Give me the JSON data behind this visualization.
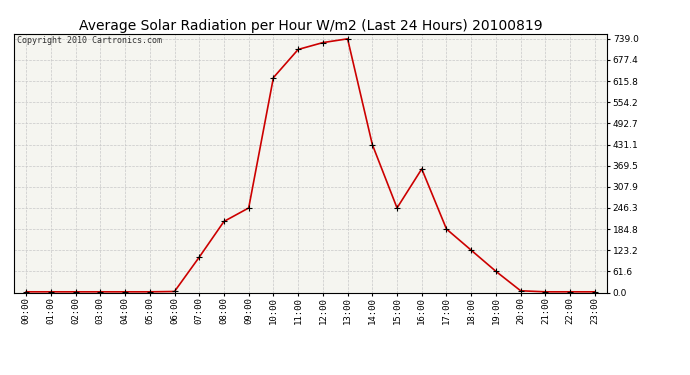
{
  "title": "Average Solar Radiation per Hour W/m2 (Last 24 Hours) 20100819",
  "copyright": "Copyright 2010 Cartronics.com",
  "hours": [
    "00:00",
    "01:00",
    "02:00",
    "03:00",
    "04:00",
    "05:00",
    "06:00",
    "07:00",
    "08:00",
    "09:00",
    "10:00",
    "11:00",
    "12:00",
    "13:00",
    "14:00",
    "15:00",
    "16:00",
    "17:00",
    "18:00",
    "19:00",
    "20:00",
    "21:00",
    "22:00",
    "23:00"
  ],
  "values": [
    2.0,
    2.0,
    2.0,
    2.0,
    2.0,
    2.0,
    3.0,
    103.0,
    207.0,
    246.3,
    626.0,
    708.0,
    728.0,
    739.0,
    431.1,
    246.3,
    360.0,
    184.8,
    123.2,
    61.6,
    5.0,
    2.0,
    2.0,
    2.0
  ],
  "ymin": 0.0,
  "ymax": 739.0,
  "yticks": [
    0.0,
    61.6,
    123.2,
    184.8,
    246.3,
    307.9,
    369.5,
    431.1,
    492.7,
    554.2,
    615.8,
    677.4,
    739.0
  ],
  "line_color": "#cc0000",
  "marker": "+",
  "marker_color": "#000000",
  "bg_color": "#ffffff",
  "plot_bg_color": "#f5f5f0",
  "grid_color": "#c8c8c8",
  "title_fontsize": 10,
  "tick_fontsize": 6.5,
  "copyright_fontsize": 6
}
